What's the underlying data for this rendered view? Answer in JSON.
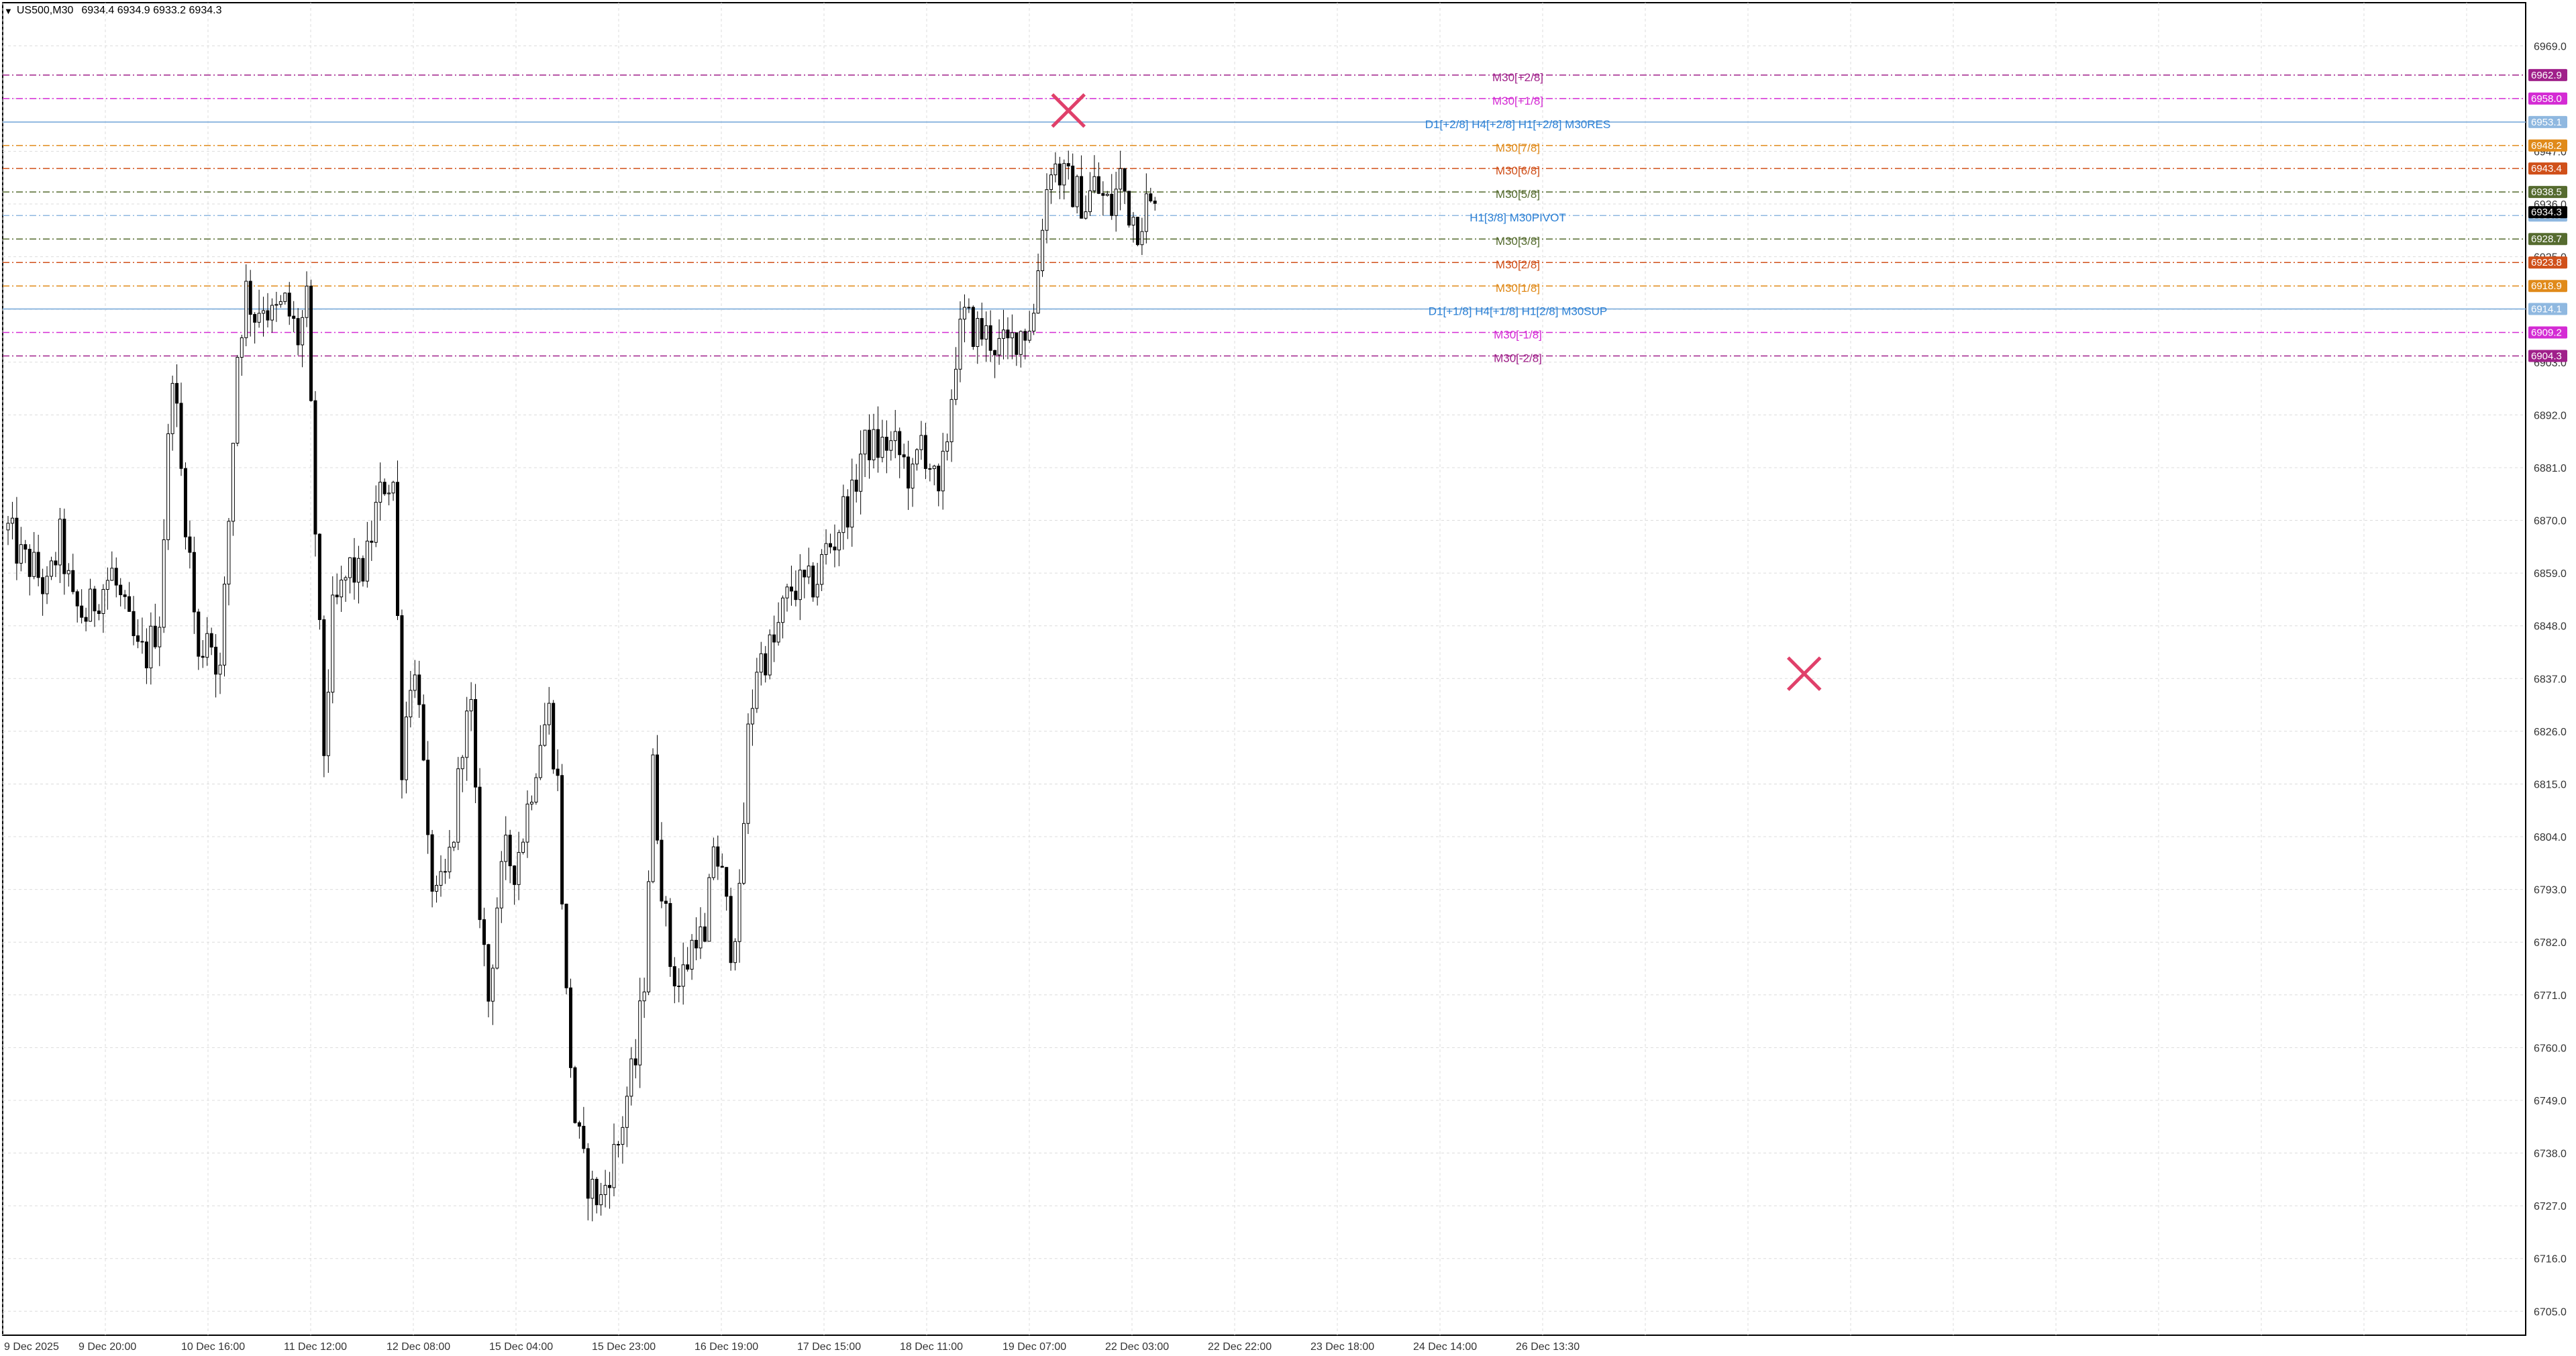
{
  "header": {
    "symbol": "US500,M30",
    "ohlc": "6934.4 6934.9 6933.2 6934.3",
    "dropdown_icon": "triangle-down-icon"
  },
  "colors": {
    "background": "#ffffff",
    "grid": "#dcdcdc",
    "candle": "#000000",
    "axis_text": "#333333",
    "blue_line": "#8fb8e0",
    "magenta": "#d42bd4",
    "purple": "#a0208a",
    "orange": "#e08a1a",
    "dark_orange": "#d0501a",
    "olive": "#556b2f",
    "cross_marker": "#e0406a",
    "blue_label": "#2a7fd4"
  },
  "chart_data": {
    "type": "candlestick",
    "timeframe": "M30",
    "symbol": "US500",
    "ylim": [
      6700,
      6978
    ],
    "y_ticks": [
      "6969.0",
      "6958.0",
      "6947.0",
      "6936.0",
      "6925.0",
      "6914.0",
      "6903.0",
      "6892.0",
      "6881.0",
      "6870.0",
      "6859.0",
      "6848.0",
      "6837.0",
      "6826.0",
      "6815.0",
      "6804.0",
      "6793.0",
      "6782.0",
      "6771.0",
      "6760.0",
      "6749.0",
      "6738.0",
      "6727.0",
      "6716.0",
      "6705.0"
    ],
    "x_ticks": [
      "9 Dec 2025",
      "9 Dec 20:00",
      "10 Dec 16:00",
      "11 Dec 12:00",
      "12 Dec 08:00",
      "15 Dec 04:00",
      "15 Dec 23:00",
      "16 Dec 19:00",
      "17 Dec 15:00",
      "18 Dec 11:00",
      "19 Dec 07:00",
      "22 Dec 03:00",
      "22 Dec 22:00",
      "23 Dec 18:00",
      "24 Dec 14:00",
      "26 Dec 13:30"
    ],
    "price_path": [
      [
        0,
        6868
      ],
      [
        3,
        6862
      ],
      [
        6,
        6860
      ],
      [
        9,
        6855
      ],
      [
        12,
        6866
      ],
      [
        15,
        6852
      ],
      [
        18,
        6850
      ],
      [
        21,
        6855
      ],
      [
        24,
        6859
      ],
      [
        27,
        6850
      ],
      [
        30,
        6842
      ],
      [
        32,
        6842
      ],
      [
        35,
        6850
      ],
      [
        38,
        6903
      ],
      [
        40,
        6880
      ],
      [
        42,
        6862
      ],
      [
        44,
        6840
      ],
      [
        46,
        6848
      ],
      [
        49,
        6838
      ],
      [
        51,
        6870
      ],
      [
        53,
        6905
      ],
      [
        55,
        6918
      ],
      [
        57,
        6913
      ],
      [
        59,
        6916
      ],
      [
        61,
        6912
      ],
      [
        64,
        6915
      ],
      [
        67,
        6908
      ],
      [
        69,
        6915
      ],
      [
        71,
        6868
      ],
      [
        73,
        6822
      ],
      [
        75,
        6850
      ],
      [
        77,
        6855
      ],
      [
        79,
        6860
      ],
      [
        81,
        6858
      ],
      [
        83,
        6862
      ],
      [
        85,
        6872
      ],
      [
        87,
        6878
      ],
      [
        89,
        6878
      ],
      [
        91,
        6820
      ],
      [
        93,
        6838
      ],
      [
        95,
        6835
      ],
      [
        97,
        6800
      ],
      [
        99,
        6790
      ],
      [
        101,
        6795
      ],
      [
        103,
        6805
      ],
      [
        105,
        6825
      ],
      [
        107,
        6830
      ],
      [
        109,
        6790
      ],
      [
        111,
        6770
      ],
      [
        113,
        6790
      ],
      [
        115,
        6800
      ],
      [
        117,
        6798
      ],
      [
        119,
        6805
      ],
      [
        121,
        6815
      ],
      [
        123,
        6825
      ],
      [
        125,
        6830
      ],
      [
        127,
        6815
      ],
      [
        129,
        6770
      ],
      [
        131,
        6745
      ],
      [
        133,
        6735
      ],
      [
        135,
        6730
      ],
      [
        137,
        6728
      ],
      [
        139,
        6735
      ],
      [
        141,
        6740
      ],
      [
        143,
        6750
      ],
      [
        145,
        6757
      ],
      [
        147,
        6775
      ],
      [
        149,
        6818
      ],
      [
        151,
        6795
      ],
      [
        153,
        6778
      ],
      [
        155,
        6773
      ],
      [
        157,
        6778
      ],
      [
        159,
        6785
      ],
      [
        161,
        6780
      ],
      [
        163,
        6803
      ],
      [
        165,
        6795
      ],
      [
        167,
        6782
      ],
      [
        169,
        6790
      ],
      [
        171,
        6825
      ],
      [
        173,
        6840
      ],
      [
        175,
        6842
      ],
      [
        177,
        6844
      ],
      [
        179,
        6851
      ],
      [
        181,
        6856
      ],
      [
        183,
        6856
      ],
      [
        185,
        6856
      ],
      [
        187,
        6858
      ],
      [
        189,
        6864
      ],
      [
        191,
        6866
      ],
      [
        193,
        6872
      ],
      [
        195,
        6874
      ],
      [
        197,
        6884
      ],
      [
        199,
        6886
      ],
      [
        201,
        6885
      ],
      [
        203,
        6886
      ],
      [
        205,
        6885
      ],
      [
        207,
        6882
      ],
      [
        209,
        6878
      ],
      [
        211,
        6887
      ],
      [
        213,
        6882
      ],
      [
        215,
        6873
      ],
      [
        217,
        6888
      ],
      [
        219,
        6905
      ],
      [
        221,
        6912
      ],
      [
        223,
        6910
      ],
      [
        225,
        6909
      ],
      [
        227,
        6908
      ],
      [
        229,
        6906
      ],
      [
        231,
        6906
      ],
      [
        233,
        6909
      ],
      [
        235,
        6910
      ],
      [
        237,
        6913
      ],
      [
        239,
        6933
      ],
      [
        241,
        6945
      ],
      [
        243,
        6942
      ],
      [
        245,
        6940
      ],
      [
        247,
        6938
      ],
      [
        249,
        6936
      ],
      [
        251,
        6940
      ],
      [
        253,
        6937
      ],
      [
        255,
        6935
      ],
      [
        257,
        6942
      ],
      [
        259,
        6935
      ],
      [
        261,
        6932
      ],
      [
        263,
        6936
      ],
      [
        265,
        6934
      ]
    ],
    "levels": [
      {
        "name": "M30[+2/8]",
        "value": 6962.9,
        "tag": "6962.9",
        "color": "#a0208a",
        "style": "dashdot"
      },
      {
        "name": "M30[+1/8]",
        "value": 6958.0,
        "tag": "6958.0",
        "color": "#d42bd4",
        "style": "dashdot"
      },
      {
        "name": "D1[+2/8] H4[+2/8] H1[+2/8] M30RES",
        "value": 6953.1,
        "tag": "6953.1",
        "color": "#8fb8e0",
        "style": "solid"
      },
      {
        "name": "M30[7/8]",
        "value": 6948.2,
        "tag": "6948.2",
        "color": "#e08a1a",
        "style": "dashdot"
      },
      {
        "name": "M30[6/8]",
        "value": 6943.4,
        "tag": "6943.4",
        "color": "#d0501a",
        "style": "dashdot"
      },
      {
        "name": "M30[5/8]",
        "value": 6938.5,
        "tag": "6938.5",
        "color": "#556b2f",
        "style": "dashdot"
      },
      {
        "name": "H1[3/8] M30PIVOT",
        "value": 6933.6,
        "tag": "6933.6",
        "color": "#8fb8e0",
        "style": "dashdot"
      },
      {
        "name": "M30[3/8]",
        "value": 6928.7,
        "tag": "6928.7",
        "color": "#556b2f",
        "style": "dashdot"
      },
      {
        "name": "M30[2/8]",
        "value": 6923.8,
        "tag": "6923.8",
        "color": "#d0501a",
        "style": "dashdot"
      },
      {
        "name": "M30[1/8]",
        "value": 6918.9,
        "tag": "6918.9",
        "color": "#e08a1a",
        "style": "dashdot"
      },
      {
        "name": "D1[+1/8] H4[+1/8] H1[2/8] M30SUP",
        "value": 6914.1,
        "tag": "6914.1",
        "color": "#8fb8e0",
        "style": "solid"
      },
      {
        "name": "M30[-1/8]",
        "value": 6909.2,
        "tag": "6909.2",
        "color": "#d42bd4",
        "style": "dashdot"
      },
      {
        "name": "M30[-2/8]",
        "value": 6904.3,
        "tag": "6904.3",
        "color": "#a0208a",
        "style": "dashdot"
      }
    ],
    "current_price": {
      "value": 6934.3,
      "tag": "6934.3"
    },
    "markers": [
      {
        "type": "cross",
        "bar_index": 245,
        "value": 6955.5
      },
      {
        "type": "cross",
        "bar_index": 415,
        "value": 6838.0
      }
    ]
  }
}
